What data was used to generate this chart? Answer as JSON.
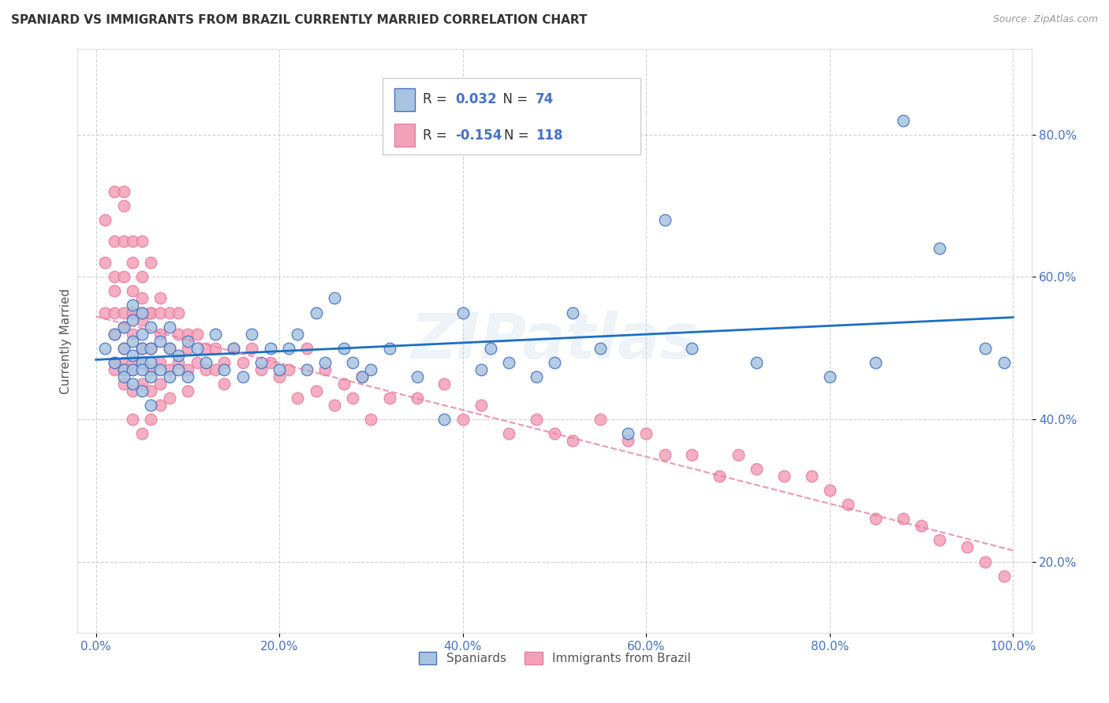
{
  "title": "SPANIARD VS IMMIGRANTS FROM BRAZIL CURRENTLY MARRIED CORRELATION CHART",
  "source": "Source: ZipAtlas.com",
  "ylabel": "Currently Married",
  "xlim": [
    -0.02,
    1.02
  ],
  "ylim": [
    0.1,
    0.92
  ],
  "x_ticks": [
    0.0,
    0.2,
    0.4,
    0.6,
    0.8,
    1.0
  ],
  "x_tick_labels": [
    "0.0%",
    "20.0%",
    "40.0%",
    "60.0%",
    "80.0%",
    "100.0%"
  ],
  "y_ticks": [
    0.2,
    0.4,
    0.6,
    0.8
  ],
  "y_tick_labels": [
    "20.0%",
    "40.0%",
    "60.0%",
    "80.0%"
  ],
  "legend_labels_bottom": [
    "Spaniards",
    "Immigrants from Brazil"
  ],
  "spaniards_R": "0.032",
  "spaniards_N": "74",
  "brazil_R": "-0.154",
  "brazil_N": "118",
  "spaniard_color": "#a8c4e0",
  "brazil_color": "#f4a0b8",
  "spaniard_edge_color": "#4472c4",
  "brazil_edge_color": "#e87da0",
  "spaniard_line_color": "#1a6fc4",
  "brazil_line_color": "#e87da0",
  "watermark": "ZIPatlas",
  "background_color": "#ffffff",
  "grid_color": "#cccccc",
  "tick_color": "#4472c4",
  "spaniards_x": [
    0.01,
    0.02,
    0.02,
    0.03,
    0.03,
    0.03,
    0.03,
    0.04,
    0.04,
    0.04,
    0.04,
    0.04,
    0.04,
    0.05,
    0.05,
    0.05,
    0.05,
    0.05,
    0.05,
    0.06,
    0.06,
    0.06,
    0.06,
    0.06,
    0.07,
    0.07,
    0.08,
    0.08,
    0.08,
    0.09,
    0.09,
    0.1,
    0.1,
    0.11,
    0.12,
    0.13,
    0.14,
    0.15,
    0.16,
    0.17,
    0.18,
    0.19,
    0.2,
    0.21,
    0.22,
    0.23,
    0.24,
    0.25,
    0.26,
    0.27,
    0.28,
    0.29,
    0.3,
    0.32,
    0.35,
    0.38,
    0.4,
    0.42,
    0.43,
    0.45,
    0.48,
    0.5,
    0.52,
    0.55,
    0.58,
    0.62,
    0.65,
    0.72,
    0.8,
    0.85,
    0.88,
    0.92,
    0.97,
    0.99
  ],
  "spaniards_y": [
    0.5,
    0.48,
    0.52,
    0.47,
    0.5,
    0.53,
    0.46,
    0.49,
    0.51,
    0.45,
    0.54,
    0.47,
    0.56,
    0.5,
    0.48,
    0.44,
    0.52,
    0.55,
    0.47,
    0.5,
    0.46,
    0.53,
    0.48,
    0.42,
    0.51,
    0.47,
    0.5,
    0.46,
    0.53,
    0.49,
    0.47,
    0.51,
    0.46,
    0.5,
    0.48,
    0.52,
    0.47,
    0.5,
    0.46,
    0.52,
    0.48,
    0.5,
    0.47,
    0.5,
    0.52,
    0.47,
    0.55,
    0.48,
    0.57,
    0.5,
    0.48,
    0.46,
    0.47,
    0.5,
    0.46,
    0.4,
    0.55,
    0.47,
    0.5,
    0.48,
    0.46,
    0.48,
    0.55,
    0.5,
    0.38,
    0.68,
    0.5,
    0.48,
    0.46,
    0.48,
    0.82,
    0.64,
    0.5,
    0.48
  ],
  "brazil_x": [
    0.01,
    0.01,
    0.01,
    0.02,
    0.02,
    0.02,
    0.02,
    0.02,
    0.02,
    0.02,
    0.02,
    0.03,
    0.03,
    0.03,
    0.03,
    0.03,
    0.03,
    0.03,
    0.03,
    0.03,
    0.03,
    0.04,
    0.04,
    0.04,
    0.04,
    0.04,
    0.04,
    0.04,
    0.04,
    0.04,
    0.04,
    0.05,
    0.05,
    0.05,
    0.05,
    0.05,
    0.05,
    0.05,
    0.05,
    0.05,
    0.05,
    0.06,
    0.06,
    0.06,
    0.06,
    0.06,
    0.06,
    0.06,
    0.06,
    0.07,
    0.07,
    0.07,
    0.07,
    0.07,
    0.07,
    0.08,
    0.08,
    0.08,
    0.08,
    0.09,
    0.09,
    0.09,
    0.1,
    0.1,
    0.1,
    0.1,
    0.11,
    0.11,
    0.12,
    0.12,
    0.13,
    0.13,
    0.14,
    0.14,
    0.15,
    0.16,
    0.17,
    0.18,
    0.19,
    0.2,
    0.21,
    0.22,
    0.23,
    0.24,
    0.25,
    0.26,
    0.27,
    0.28,
    0.29,
    0.3,
    0.32,
    0.35,
    0.38,
    0.4,
    0.42,
    0.45,
    0.48,
    0.5,
    0.52,
    0.55,
    0.58,
    0.6,
    0.62,
    0.65,
    0.68,
    0.7,
    0.72,
    0.75,
    0.78,
    0.8,
    0.82,
    0.85,
    0.88,
    0.9,
    0.92,
    0.95,
    0.97,
    0.99
  ],
  "brazil_y": [
    0.55,
    0.62,
    0.68,
    0.58,
    0.65,
    0.52,
    0.48,
    0.72,
    0.6,
    0.47,
    0.55,
    0.7,
    0.6,
    0.55,
    0.5,
    0.48,
    0.65,
    0.53,
    0.45,
    0.72,
    0.47,
    0.58,
    0.52,
    0.48,
    0.65,
    0.55,
    0.47,
    0.62,
    0.44,
    0.55,
    0.4,
    0.6,
    0.54,
    0.5,
    0.48,
    0.65,
    0.45,
    0.57,
    0.38,
    0.55,
    0.5,
    0.55,
    0.5,
    0.47,
    0.62,
    0.44,
    0.5,
    0.55,
    0.4,
    0.57,
    0.52,
    0.48,
    0.45,
    0.55,
    0.42,
    0.55,
    0.5,
    0.47,
    0.43,
    0.52,
    0.48,
    0.55,
    0.5,
    0.47,
    0.44,
    0.52,
    0.48,
    0.52,
    0.5,
    0.47,
    0.5,
    0.47,
    0.48,
    0.45,
    0.5,
    0.48,
    0.5,
    0.47,
    0.48,
    0.46,
    0.47,
    0.43,
    0.5,
    0.44,
    0.47,
    0.42,
    0.45,
    0.43,
    0.46,
    0.4,
    0.43,
    0.43,
    0.45,
    0.4,
    0.42,
    0.38,
    0.4,
    0.38,
    0.37,
    0.4,
    0.37,
    0.38,
    0.35,
    0.35,
    0.32,
    0.35,
    0.33,
    0.32,
    0.32,
    0.3,
    0.28,
    0.26,
    0.26,
    0.25,
    0.23,
    0.22,
    0.2,
    0.18
  ]
}
